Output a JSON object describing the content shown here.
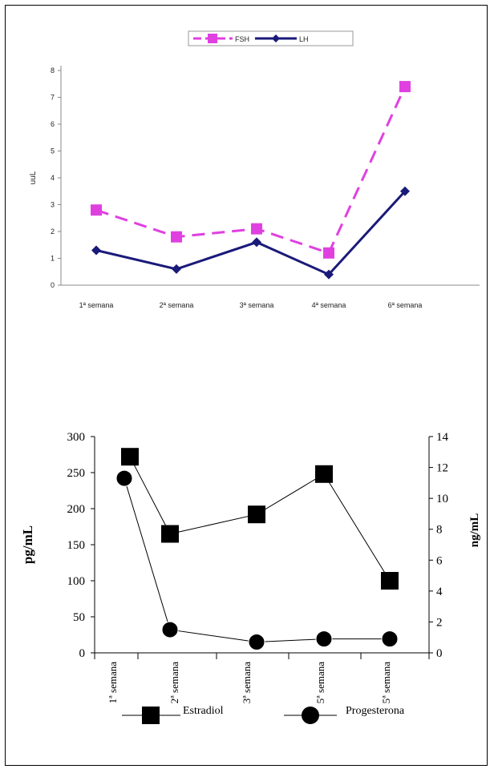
{
  "chart_data": [
    {
      "type": "line",
      "ylabel": "uuL",
      "ylim": [
        0,
        8
      ],
      "yticks": [
        "0",
        "1",
        "2",
        "3",
        "4",
        "5",
        "6",
        "7",
        "8"
      ],
      "categories": [
        "1ª semana",
        "2ª semana",
        "3ª semana",
        "4ª semana",
        "6ª semana"
      ],
      "series": [
        {
          "name": "FSH",
          "values": [
            2.8,
            1.8,
            2.1,
            1.2,
            7.4
          ],
          "color": "#e040e0",
          "marker": "square",
          "dash": true
        },
        {
          "name": "LH",
          "values": [
            1.3,
            0.6,
            1.6,
            0.4,
            3.5
          ],
          "color": "#1a1a7a",
          "marker": "diamond",
          "dash": false
        }
      ],
      "legend": "top-center",
      "grid": false
    },
    {
      "type": "line",
      "ylabel": "pg/mL",
      "y2label": "ng/mL",
      "ylim": [
        0,
        300
      ],
      "y2lim": [
        0,
        14
      ],
      "yticks": [
        "0",
        "50",
        "100",
        "150",
        "200",
        "250",
        "300"
      ],
      "y2ticks": [
        "0",
        "2",
        "4",
        "6",
        "8",
        "10",
        "12",
        "14"
      ],
      "categories": [
        "1ª semana",
        "2ª semana",
        "3ª semana",
        "5ª semana",
        "5ª semana"
      ],
      "series": [
        {
          "name": "Estradiol",
          "values": [
            272,
            165,
            192,
            248,
            100
          ],
          "axis": "left",
          "color": "#000000",
          "marker": "square"
        },
        {
          "name": "Progesterona",
          "values": [
            11.3,
            1.5,
            0.7,
            0.9,
            0.9
          ],
          "axis": "right",
          "color": "#000000",
          "marker": "circle"
        }
      ],
      "legend": "bottom",
      "grid": false
    }
  ]
}
